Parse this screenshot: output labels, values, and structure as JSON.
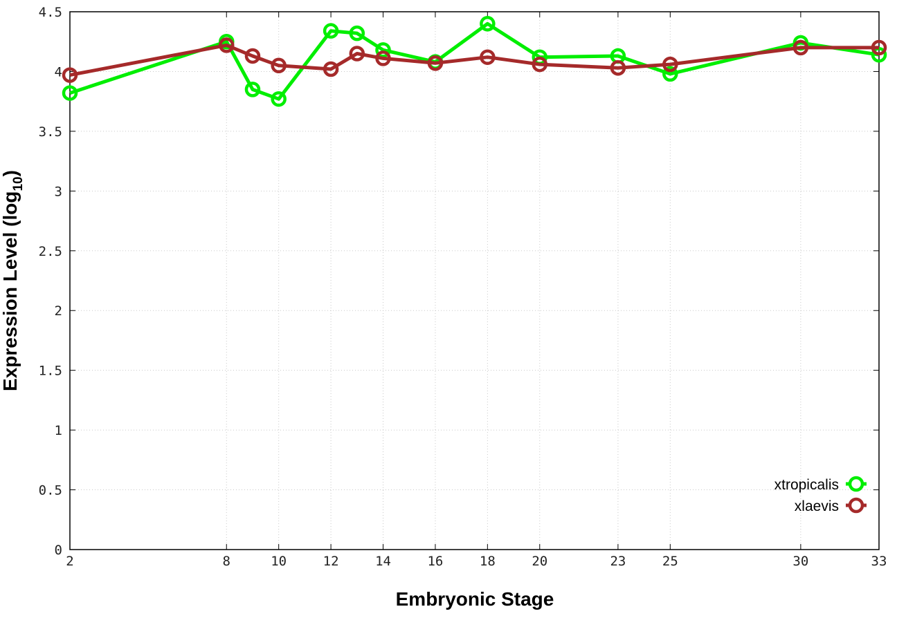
{
  "chart_data": {
    "type": "line",
    "xlabel": "Embryonic Stage",
    "ylabel_main": "Expression Level (log",
    "ylabel_sub": "10",
    "ylabel_close": ")",
    "xlim": [
      2,
      33
    ],
    "ylim": [
      0,
      4.5
    ],
    "xticks": [
      2,
      8,
      10,
      12,
      14,
      16,
      18,
      20,
      23,
      25,
      30,
      33
    ],
    "yticks": [
      0,
      0.5,
      1,
      1.5,
      2,
      2.5,
      3,
      3.5,
      4,
      4.5
    ],
    "ytick_labels": [
      "0",
      "0.5",
      "1",
      "1.5",
      "2",
      "2.5",
      "3",
      "3.5",
      "4",
      "4.5"
    ],
    "grid": true,
    "legend_position": "bottom-right",
    "x": [
      2,
      8,
      9,
      10,
      12,
      13,
      14,
      16,
      18,
      20,
      23,
      25,
      30,
      33
    ],
    "series": [
      {
        "name": "xtropicalis",
        "color": "#00ee00",
        "values": [
          3.82,
          4.25,
          3.85,
          3.77,
          4.34,
          4.32,
          4.18,
          4.08,
          4.4,
          4.12,
          4.13,
          3.98,
          4.24,
          4.14
        ]
      },
      {
        "name": "xlaevis",
        "color": "#a52a2a",
        "values": [
          3.97,
          4.22,
          4.13,
          4.05,
          4.02,
          4.15,
          4.11,
          4.07,
          4.12,
          4.06,
          4.03,
          4.06,
          4.2,
          4.2
        ]
      }
    ]
  }
}
